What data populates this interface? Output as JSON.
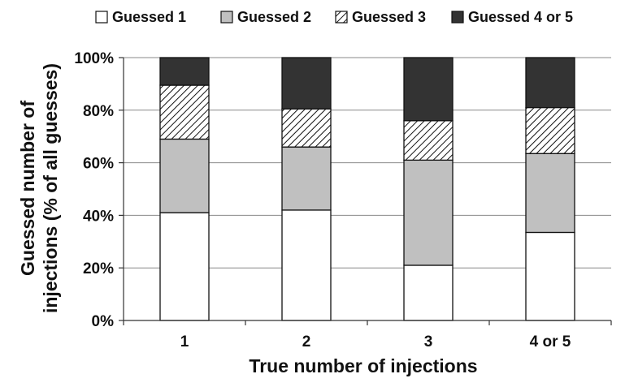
{
  "chart_data": {
    "type": "bar",
    "stacked": true,
    "categories": [
      "1",
      "2",
      "3",
      "4 or 5"
    ],
    "series": [
      {
        "name": "Guessed 1",
        "values": [
          41,
          42,
          21,
          33.5
        ],
        "fill": "white"
      },
      {
        "name": "Guessed 2",
        "values": [
          28,
          24,
          40,
          30
        ],
        "fill": "lightgray"
      },
      {
        "name": "Guessed 3",
        "values": [
          20.5,
          14.5,
          15,
          17.5
        ],
        "fill": "hatch"
      },
      {
        "name": "Guessed 4 or 5",
        "values": [
          10.5,
          19.5,
          24,
          19
        ],
        "fill": "darkgray"
      }
    ],
    "xlabel": "True number of injections",
    "ylabel_lines": [
      "Guessed number of",
      "injections (% of all guesses)"
    ],
    "ylim": [
      0,
      100
    ],
    "yticks": [
      0,
      20,
      40,
      60,
      80,
      100
    ],
    "ytick_labels": [
      "0%",
      "20%",
      "40%",
      "60%",
      "80%",
      "100%"
    ],
    "legend_position": "top",
    "grid": true,
    "colors": {
      "white": "#ffffff",
      "lightgray": "#c0c0c0",
      "darkgray": "#333333",
      "hatch": "#111111",
      "grid": "#888888"
    }
  }
}
